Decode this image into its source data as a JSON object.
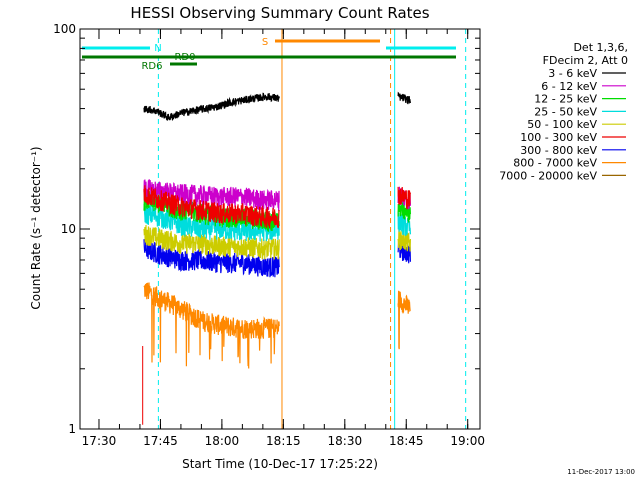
{
  "chart_data": {
    "type": "line",
    "title": "HESSI Observing Summary Count Rates",
    "xlabel": "Start Time (10-Dec-17 17:25:22)",
    "ylabel": "Count Rate (s⁻¹ detector⁻¹)",
    "yscale": "log",
    "ylim": [
      1,
      100
    ],
    "xlim": [
      "17:25:22",
      "19:03:00"
    ],
    "yticks": [
      "1",
      "10",
      "100"
    ],
    "xticks": [
      "17:30",
      "17:45",
      "18:00",
      "18:15",
      "18:30",
      "18:45",
      "19:00"
    ],
    "grid": false,
    "legend_position": "top-right",
    "legend_header": [
      "Det 1,3,6,",
      "FDecim 2, Att 0"
    ],
    "footer_date": "11-Dec-2017 13:00",
    "series": [
      {
        "name": "3 - 6 keV",
        "color": "#000000",
        "segments": [
          {
            "x": [
              "17:41:00",
              "17:44:00",
              "17:47:00",
              "17:50:00",
              "17:53:00",
              "17:56:00",
              "17:59:00",
              "18:02:00",
              "18:05:00",
              "18:08:00",
              "18:11:00",
              "18:14:00"
            ],
            "y": [
              40,
              39,
              36,
              38,
              39,
              40,
              41,
              43,
              44,
              45,
              46,
              45
            ]
          },
          {
            "x": [
              "18:43:00",
              "18:44:30",
              "18:46:00"
            ],
            "y": [
              46,
              45,
              44
            ]
          }
        ]
      },
      {
        "name": "6 - 12 keV",
        "color": "#cc00cc",
        "segments": [
          {
            "x": [
              "17:41:00",
              "17:45:00",
              "17:50:00",
              "17:55:00",
              "18:00:00",
              "18:05:00",
              "18:10:00",
              "18:14:00"
            ],
            "y": [
              16,
              15.5,
              15,
              14.8,
              14.5,
              14.5,
              14,
              14
            ]
          },
          {
            "x": [
              "18:43:00",
              "18:46:00"
            ],
            "y": [
              15,
              14
            ]
          }
        ]
      },
      {
        "name": "12 - 25 keV",
        "color": "#00dd00",
        "segments": [
          {
            "x": [
              "17:41:00",
              "17:45:00",
              "17:50:00",
              "17:55:00",
              "18:00:00",
              "18:05:00",
              "18:10:00",
              "18:14:00"
            ],
            "y": [
              14,
              13.5,
              12.5,
              12,
              11.5,
              11.5,
              11,
              11
            ]
          },
          {
            "x": [
              "18:43:00",
              "18:46:00"
            ],
            "y": [
              13,
              12
            ]
          }
        ]
      },
      {
        "name": "25 - 50 keV",
        "color": "#00dddd",
        "segments": [
          {
            "x": [
              "17:41:00",
              "17:45:00",
              "17:50:00",
              "17:55:00",
              "18:00:00",
              "18:05:00",
              "18:10:00",
              "18:14:00"
            ],
            "y": [
              12,
              11.5,
              10.5,
              10,
              10,
              9.8,
              9.8,
              10
            ]
          },
          {
            "x": [
              "18:43:00",
              "18:46:00"
            ],
            "y": [
              11,
              10
            ]
          }
        ]
      },
      {
        "name": "50 - 100 keV",
        "color": "#cccc00",
        "segments": [
          {
            "x": [
              "17:41:00",
              "17:45:00",
              "17:50:00",
              "17:55:00",
              "18:00:00",
              "18:05:00",
              "18:10:00",
              "18:14:00"
            ],
            "y": [
              9.5,
              9,
              8.5,
              8.5,
              8.2,
              8.2,
              8,
              8
            ]
          },
          {
            "x": [
              "18:43:00",
              "18:46:00"
            ],
            "y": [
              9,
              8.5
            ]
          }
        ]
      },
      {
        "name": "100 - 300 keV",
        "color": "#ee0000",
        "segments": [
          {
            "x": [
              "17:41:00",
              "17:45:00",
              "17:50:00",
              "17:55:00",
              "18:00:00",
              "18:05:00",
              "18:10:00",
              "18:14:00"
            ],
            "y": [
              15,
              14,
              13,
              12.5,
              12,
              12,
              11.5,
              11.5
            ]
          },
          {
            "x": [
              "18:43:00",
              "18:46:00"
            ],
            "y": [
              15,
              14
            ]
          }
        ]
      },
      {
        "name": "300 - 800 keV",
        "color": "#0000ee",
        "segments": [
          {
            "x": [
              "17:41:00",
              "17:45:00",
              "17:50:00",
              "17:55:00",
              "18:00:00",
              "18:05:00",
              "18:10:00",
              "18:14:00"
            ],
            "y": [
              8,
              7.5,
              7,
              7,
              6.8,
              6.8,
              6.5,
              6.5
            ]
          },
          {
            "x": [
              "18:43:00",
              "18:46:00"
            ],
            "y": [
              8,
              7.5
            ]
          }
        ]
      },
      {
        "name": "800 - 7000 keV",
        "color": "#ff8800",
        "segments": [
          {
            "x": [
              "17:41:00",
              "17:45:00",
              "17:50:00",
              "17:55:00",
              "18:00:00",
              "18:05:00",
              "18:10:00",
              "18:14:00"
            ],
            "y": [
              5,
              4.5,
              4,
              3.5,
              3.3,
              3.2,
              3.2,
              3.2
            ]
          },
          {
            "x": [
              "18:43:00",
              "18:46:00"
            ],
            "y": [
              4.5,
              4
            ]
          }
        ]
      },
      {
        "name": "7000 - 20000 keV",
        "color": "#996600",
        "segments": []
      }
    ],
    "annotations": {
      "flags": [
        {
          "label": "N",
          "color": "#00eeee"
        },
        {
          "label": "RD0",
          "color": "#007700"
        },
        {
          "label": "RD6",
          "color": "#007700"
        },
        {
          "label": "S",
          "color": "#ff8800"
        }
      ]
    }
  }
}
